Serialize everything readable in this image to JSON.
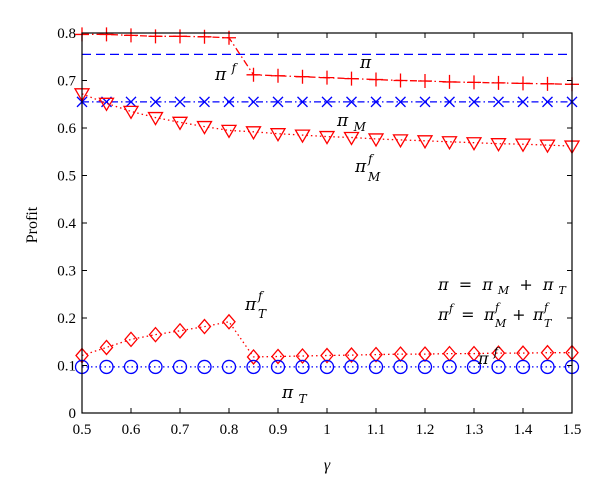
{
  "chart_data": {
    "type": "line",
    "xlabel": "γ",
    "ylabel": "Profit",
    "xlim": [
      0.5,
      1.5
    ],
    "ylim": [
      0,
      0.8
    ],
    "xticks": [
      "0.5",
      "0.6",
      "0.7",
      "0.8",
      "0.9",
      "1",
      "1.1",
      "1.2",
      "1.3",
      "1.4",
      "1.5"
    ],
    "yticks": [
      "0",
      "0.1",
      "0.2",
      "0.3",
      "0.4",
      "0.5",
      "0.6",
      "0.7",
      "0.8"
    ],
    "grid": false,
    "series": [
      {
        "key": "pi",
        "color": "#0000ff",
        "style": "dashed",
        "marker": "none",
        "x": [
          0.5,
          1.5
        ],
        "y": [
          0.755,
          0.755
        ]
      },
      {
        "key": "pif",
        "color": "#ff0000",
        "style": "dashdot",
        "marker": "plus",
        "x": [
          0.5,
          0.55,
          0.6,
          0.65,
          0.7,
          0.75,
          0.8,
          0.85,
          0.9,
          0.95,
          1.0,
          1.05,
          1.1,
          1.15,
          1.2,
          1.25,
          1.3,
          1.35,
          1.4,
          1.45,
          1.5
        ],
        "y": [
          0.797,
          0.797,
          0.795,
          0.793,
          0.793,
          0.792,
          0.79,
          0.712,
          0.71,
          0.708,
          0.706,
          0.704,
          0.702,
          0.7,
          0.699,
          0.697,
          0.696,
          0.695,
          0.694,
          0.693,
          0.692
        ]
      },
      {
        "key": "piM",
        "color": "#0000ff",
        "style": "dashdot",
        "marker": "x",
        "x": [
          0.5,
          0.55,
          0.6,
          0.65,
          0.7,
          0.75,
          0.8,
          0.85,
          0.9,
          0.95,
          1.0,
          1.05,
          1.1,
          1.15,
          1.2,
          1.25,
          1.3,
          1.35,
          1.4,
          1.45,
          1.5
        ],
        "y": [
          0.655,
          0.655,
          0.655,
          0.655,
          0.655,
          0.655,
          0.655,
          0.655,
          0.655,
          0.655,
          0.655,
          0.655,
          0.655,
          0.655,
          0.655,
          0.655,
          0.655,
          0.655,
          0.655,
          0.655,
          0.655
        ]
      },
      {
        "key": "piMf",
        "color": "#ff0000",
        "style": "dotted",
        "marker": "triangle-down",
        "x": [
          0.5,
          0.55,
          0.6,
          0.65,
          0.7,
          0.75,
          0.8,
          0.85,
          0.9,
          0.95,
          1.0,
          1.05,
          1.1,
          1.15,
          1.2,
          1.25,
          1.3,
          1.35,
          1.4,
          1.45,
          1.5
        ],
        "y": [
          0.672,
          0.652,
          0.635,
          0.622,
          0.612,
          0.603,
          0.595,
          0.592,
          0.588,
          0.585,
          0.582,
          0.58,
          0.577,
          0.575,
          0.573,
          0.571,
          0.569,
          0.567,
          0.566,
          0.564,
          0.562
        ]
      },
      {
        "key": "piTf",
        "color": "#ff0000",
        "style": "dotted",
        "marker": "diamond",
        "x": [
          0.5,
          0.55,
          0.6,
          0.65,
          0.7,
          0.75,
          0.8,
          0.85,
          0.9,
          0.95,
          1.0,
          1.05,
          1.1,
          1.15,
          1.2,
          1.25,
          1.3,
          1.35,
          1.4,
          1.45,
          1.5
        ],
        "y": [
          0.121,
          0.138,
          0.155,
          0.165,
          0.173,
          0.182,
          0.192,
          0.118,
          0.119,
          0.12,
          0.121,
          0.122,
          0.123,
          0.124,
          0.124,
          0.125,
          0.125,
          0.126,
          0.126,
          0.127,
          0.127
        ]
      },
      {
        "key": "piT",
        "color": "#0000ff",
        "style": "dotted",
        "marker": "circle",
        "x": [
          0.5,
          0.55,
          0.6,
          0.65,
          0.7,
          0.75,
          0.8,
          0.85,
          0.9,
          0.95,
          1.0,
          1.05,
          1.1,
          1.15,
          1.2,
          1.25,
          1.3,
          1.35,
          1.4,
          1.45,
          1.5
        ],
        "y": [
          0.097,
          0.097,
          0.097,
          0.097,
          0.097,
          0.097,
          0.097,
          0.097,
          0.097,
          0.097,
          0.097,
          0.097,
          0.097,
          0.097,
          0.097,
          0.097,
          0.097,
          0.097,
          0.097,
          0.097,
          0.097
        ]
      }
    ],
    "annotations": [
      {
        "key": "label-pi",
        "base": "π",
        "sup": "",
        "sub": ""
      },
      {
        "key": "label-pif",
        "base": "π",
        "sup": "f",
        "sub": ""
      },
      {
        "key": "label-piM",
        "base": "π",
        "sup": "",
        "sub": "M"
      },
      {
        "key": "label-piMf",
        "base": "π",
        "sup": "f",
        "sub": "M"
      },
      {
        "key": "label-piTf-upper",
        "base": "π",
        "sup": "f",
        "sub": "T"
      },
      {
        "key": "label-piT",
        "base": "π",
        "sup": "",
        "sub": "T"
      },
      {
        "key": "label-pif-lower",
        "base": "π",
        "sup": "f",
        "sub": ""
      }
    ],
    "equations": {
      "eq1": {
        "lhs": "π",
        "eq": " = ",
        "t1": "π",
        "t1sub": "M",
        "plus": " + ",
        "t2": "π",
        "t2sub": "T"
      },
      "eq2": {
        "lhs": "π",
        "lhssup": "f",
        "eq": " = ",
        "t1": "π",
        "t1sup": "f",
        "t1sub": "M",
        "plus": " + ",
        "t2": "π",
        "t2sup": "f",
        "t2sub": "T"
      }
    }
  }
}
